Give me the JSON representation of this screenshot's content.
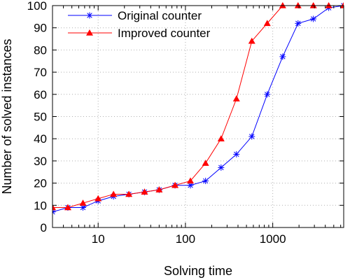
{
  "chart_data": {
    "type": "line",
    "xlabel": "Solving time",
    "ylabel": "Number of solved instances",
    "xscale": "log",
    "xlim": [
      3,
      6500
    ],
    "ylim": [
      0,
      100
    ],
    "grid": true,
    "legend_position": "top-left",
    "x_ticks": [
      10,
      100,
      1000
    ],
    "x_tick_labels": [
      "10",
      "100",
      "1000"
    ],
    "y_ticks": [
      0,
      10,
      20,
      30,
      40,
      50,
      60,
      70,
      80,
      90,
      100
    ],
    "y_tick_labels": [
      "0",
      "10",
      "20",
      "30",
      "40",
      "50",
      "60",
      "70",
      "80",
      "90",
      "100"
    ],
    "series": [
      {
        "name": "Original counter",
        "color": "#0000ff",
        "marker": "asterisk",
        "x": [
          3,
          4.5,
          6.7,
          10,
          15,
          22.5,
          34,
          50,
          76,
          114,
          170,
          256,
          384,
          576,
          865,
          1300,
          1950,
          2920,
          4380,
          6500
        ],
        "y": [
          7,
          9,
          9,
          12,
          14,
          15,
          16,
          17,
          19,
          19,
          21,
          27,
          33,
          41,
          60,
          77,
          92,
          94,
          99,
          100
        ]
      },
      {
        "name": "Improved counter",
        "color": "#ff0000",
        "marker": "triangle",
        "x": [
          3,
          4.5,
          6.7,
          10,
          15,
          22.5,
          34,
          50,
          76,
          114,
          170,
          256,
          384,
          576,
          865,
          1300,
          1950,
          2920,
          4380,
          6500
        ],
        "y": [
          9,
          9,
          11,
          13,
          15,
          15,
          16,
          17,
          19,
          21,
          29,
          40,
          58,
          84,
          92,
          100,
          100,
          100,
          100,
          100
        ]
      }
    ]
  }
}
